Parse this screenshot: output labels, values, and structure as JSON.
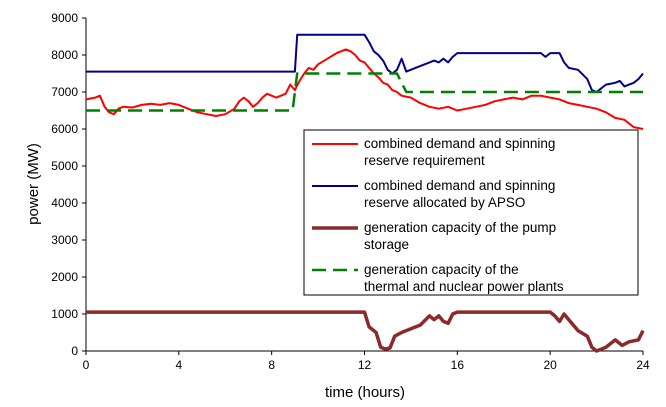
{
  "chart_data": {
    "type": "line",
    "xlabel": "time (hours)",
    "ylabel": "power (MW)",
    "xlim": [
      0,
      24
    ],
    "ylim": [
      0,
      9000
    ],
    "x_ticks": [
      0,
      4,
      8,
      12,
      16,
      20,
      24
    ],
    "y_ticks": [
      0,
      1000,
      2000,
      3000,
      4000,
      5000,
      6000,
      7000,
      8000,
      9000
    ],
    "grid": false,
    "legend_position": "center-right",
    "series": [
      {
        "name": "combined demand and spinning reserve requirement",
        "name_lines": [
          "combined demand and spinning",
          "reserve requirement"
        ],
        "color": "#ff0000",
        "style": "solid",
        "points": [
          [
            0,
            6800
          ],
          [
            0.4,
            6850
          ],
          [
            0.6,
            6900
          ],
          [
            0.8,
            6600
          ],
          [
            1,
            6450
          ],
          [
            1.2,
            6400
          ],
          [
            1.4,
            6550
          ],
          [
            1.6,
            6600
          ],
          [
            2,
            6580
          ],
          [
            2.4,
            6650
          ],
          [
            2.8,
            6680
          ],
          [
            3.2,
            6650
          ],
          [
            3.6,
            6700
          ],
          [
            4,
            6650
          ],
          [
            4.4,
            6550
          ],
          [
            4.8,
            6450
          ],
          [
            5.2,
            6400
          ],
          [
            5.6,
            6350
          ],
          [
            6,
            6400
          ],
          [
            6.4,
            6550
          ],
          [
            6.6,
            6750
          ],
          [
            6.8,
            6850
          ],
          [
            7,
            6750
          ],
          [
            7.2,
            6600
          ],
          [
            7.4,
            6700
          ],
          [
            7.6,
            6850
          ],
          [
            7.8,
            6950
          ],
          [
            8.2,
            6850
          ],
          [
            8.6,
            6950
          ],
          [
            8.8,
            7200
          ],
          [
            9,
            7050
          ],
          [
            9.2,
            7300
          ],
          [
            9.4,
            7500
          ],
          [
            9.6,
            7650
          ],
          [
            9.8,
            7600
          ],
          [
            10,
            7750
          ],
          [
            10.4,
            7900
          ],
          [
            10.8,
            8050
          ],
          [
            11.2,
            8150
          ],
          [
            11.4,
            8100
          ],
          [
            11.6,
            8000
          ],
          [
            11.8,
            7850
          ],
          [
            12,
            7800
          ],
          [
            12.2,
            7650
          ],
          [
            12.4,
            7500
          ],
          [
            12.6,
            7400
          ],
          [
            12.8,
            7250
          ],
          [
            13,
            7200
          ],
          [
            13.2,
            7050
          ],
          [
            13.4,
            7000
          ],
          [
            13.6,
            6900
          ],
          [
            14,
            6850
          ],
          [
            14.4,
            6700
          ],
          [
            14.8,
            6600
          ],
          [
            15.2,
            6550
          ],
          [
            15.6,
            6600
          ],
          [
            16,
            6500
          ],
          [
            16.4,
            6550
          ],
          [
            16.8,
            6600
          ],
          [
            17.2,
            6650
          ],
          [
            17.6,
            6750
          ],
          [
            18,
            6800
          ],
          [
            18.4,
            6850
          ],
          [
            18.8,
            6800
          ],
          [
            19.2,
            6900
          ],
          [
            19.6,
            6900
          ],
          [
            20,
            6850
          ],
          [
            20.4,
            6800
          ],
          [
            20.8,
            6700
          ],
          [
            21.2,
            6650
          ],
          [
            21.6,
            6600
          ],
          [
            22,
            6550
          ],
          [
            22.4,
            6450
          ],
          [
            22.8,
            6300
          ],
          [
            23.2,
            6250
          ],
          [
            23.6,
            6050
          ],
          [
            24,
            6000
          ]
        ]
      },
      {
        "name": "combined demand and spinning reserve allocated by APSO",
        "name_lines": [
          "combined demand and spinning",
          "reserve allocated by APSO"
        ],
        "color": "#00008b",
        "style": "solid",
        "points": [
          [
            0,
            7550
          ],
          [
            9,
            7550
          ],
          [
            9.1,
            8550
          ],
          [
            12,
            8550
          ],
          [
            12.2,
            8350
          ],
          [
            12.4,
            8100
          ],
          [
            12.6,
            8000
          ],
          [
            12.8,
            7850
          ],
          [
            13,
            7600
          ],
          [
            13.2,
            7500
          ],
          [
            13.4,
            7600
          ],
          [
            13.6,
            7900
          ],
          [
            13.8,
            7550
          ],
          [
            14.4,
            7700
          ],
          [
            14.8,
            7800
          ],
          [
            15,
            7850
          ],
          [
            15.2,
            7800
          ],
          [
            15.4,
            7900
          ],
          [
            15.6,
            7800
          ],
          [
            15.8,
            7950
          ],
          [
            16,
            8050
          ],
          [
            19.6,
            8050
          ],
          [
            19.8,
            7950
          ],
          [
            20,
            8050
          ],
          [
            20.4,
            8050
          ],
          [
            20.6,
            7800
          ],
          [
            20.8,
            7650
          ],
          [
            21.2,
            7600
          ],
          [
            21.6,
            7350
          ],
          [
            21.8,
            7050
          ],
          [
            22,
            7000
          ],
          [
            22.4,
            7200
          ],
          [
            22.8,
            7250
          ],
          [
            23,
            7300
          ],
          [
            23.2,
            7150
          ],
          [
            23.4,
            7200
          ],
          [
            23.6,
            7250
          ],
          [
            23.8,
            7350
          ],
          [
            24,
            7500
          ]
        ]
      },
      {
        "name": "generation capacity of the pump storage",
        "name_lines": [
          "generation capacity of the pump",
          "storage"
        ],
        "color": "#8b2a2a",
        "style": "thick",
        "points": [
          [
            0,
            1050
          ],
          [
            12,
            1050
          ],
          [
            12.2,
            650
          ],
          [
            12.5,
            500
          ],
          [
            12.7,
            100
          ],
          [
            12.9,
            50
          ],
          [
            13.1,
            80
          ],
          [
            13.3,
            400
          ],
          [
            13.6,
            500
          ],
          [
            14,
            600
          ],
          [
            14.4,
            700
          ],
          [
            14.8,
            950
          ],
          [
            15.0,
            850
          ],
          [
            15.2,
            950
          ],
          [
            15.4,
            800
          ],
          [
            15.6,
            750
          ],
          [
            15.8,
            1000
          ],
          [
            16,
            1050
          ],
          [
            20,
            1050
          ],
          [
            20.2,
            950
          ],
          [
            20.4,
            800
          ],
          [
            20.6,
            1000
          ],
          [
            20.8,
            850
          ],
          [
            21.2,
            550
          ],
          [
            21.6,
            400
          ],
          [
            21.8,
            100
          ],
          [
            22,
            0
          ],
          [
            22.4,
            100
          ],
          [
            22.8,
            300
          ],
          [
            23.1,
            150
          ],
          [
            23.4,
            250
          ],
          [
            23.8,
            300
          ],
          [
            24,
            550
          ]
        ]
      },
      {
        "name": "generation capacity of the thermal and nuclear power plants",
        "name_lines": [
          "generation capacity of the",
          "thermal and nuclear power plants"
        ],
        "color": "#008000",
        "style": "dashed",
        "points": [
          [
            0,
            6500
          ],
          [
            8.9,
            6500
          ],
          [
            9.1,
            7500
          ],
          [
            13.4,
            7500
          ],
          [
            13.8,
            7000
          ],
          [
            24,
            7000
          ]
        ]
      }
    ]
  }
}
